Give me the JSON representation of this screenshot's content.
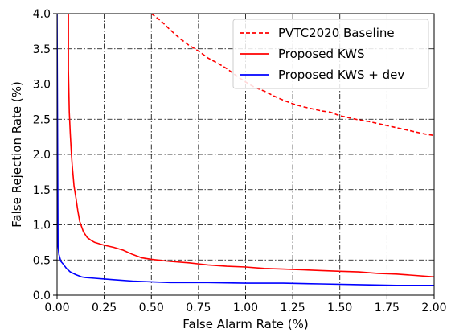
{
  "chart_data": {
    "type": "line",
    "title": "",
    "xlabel": "False Alarm Rate (%)",
    "ylabel": "False Rejection Rate (%)",
    "xlim": [
      0.0,
      2.0
    ],
    "ylim": [
      0.0,
      4.0
    ],
    "xticks": [
      "0.00",
      "0.25",
      "0.50",
      "0.75",
      "1.00",
      "1.25",
      "1.50",
      "1.75",
      "2.00"
    ],
    "yticks": [
      "0.0",
      "0.5",
      "1.0",
      "1.5",
      "2.0",
      "2.5",
      "3.0",
      "3.5",
      "4.0"
    ],
    "grid": true,
    "grid_style": "dash-dot",
    "legend_position": "top-right",
    "series": [
      {
        "name": "PVTC2020 Baseline",
        "color": "#ff0000",
        "style": "dashed",
        "x": [
          0.5,
          0.55,
          0.6,
          0.65,
          0.7,
          0.75,
          0.8,
          0.85,
          0.9,
          0.95,
          1.0,
          1.05,
          1.1,
          1.15,
          1.2,
          1.25,
          1.3,
          1.35,
          1.4,
          1.45,
          1.5,
          1.55,
          1.6,
          1.65,
          1.7,
          1.75,
          1.8,
          1.85,
          1.9,
          1.95,
          2.0
        ],
        "y": [
          4.0,
          3.9,
          3.77,
          3.65,
          3.55,
          3.47,
          3.37,
          3.3,
          3.22,
          3.12,
          3.03,
          2.95,
          2.9,
          2.83,
          2.77,
          2.72,
          2.68,
          2.65,
          2.62,
          2.6,
          2.55,
          2.52,
          2.49,
          2.47,
          2.44,
          2.41,
          2.38,
          2.35,
          2.32,
          2.29,
          2.27
        ]
      },
      {
        "name": "Proposed KWS",
        "color": "#ff0000",
        "style": "solid",
        "x": [
          0.06,
          0.06,
          0.065,
          0.07,
          0.075,
          0.08,
          0.09,
          0.1,
          0.11,
          0.12,
          0.14,
          0.16,
          0.18,
          0.2,
          0.25,
          0.3,
          0.35,
          0.4,
          0.45,
          0.5,
          0.6,
          0.7,
          0.8,
          0.9,
          1.0,
          1.1,
          1.2,
          1.3,
          1.4,
          1.5,
          1.6,
          1.7,
          1.8,
          1.9,
          2.0
        ],
        "y": [
          4.0,
          3.2,
          2.6,
          2.3,
          2.05,
          1.85,
          1.55,
          1.38,
          1.2,
          1.05,
          0.9,
          0.82,
          0.78,
          0.75,
          0.71,
          0.68,
          0.64,
          0.58,
          0.53,
          0.51,
          0.48,
          0.46,
          0.43,
          0.41,
          0.4,
          0.38,
          0.37,
          0.36,
          0.35,
          0.34,
          0.33,
          0.31,
          0.3,
          0.28,
          0.26
        ]
      },
      {
        "name": "Proposed KWS + dev",
        "color": "#0000ff",
        "style": "solid",
        "x": [
          0.0,
          0.005,
          0.01,
          0.02,
          0.03,
          0.05,
          0.07,
          0.1,
          0.13,
          0.15,
          0.2,
          0.3,
          0.4,
          0.5,
          0.6,
          0.8,
          1.0,
          1.2,
          1.4,
          1.6,
          1.8,
          2.0
        ],
        "y": [
          4.0,
          0.7,
          0.58,
          0.48,
          0.45,
          0.38,
          0.33,
          0.29,
          0.26,
          0.25,
          0.24,
          0.22,
          0.2,
          0.19,
          0.18,
          0.18,
          0.17,
          0.17,
          0.16,
          0.15,
          0.14,
          0.14
        ]
      }
    ]
  }
}
